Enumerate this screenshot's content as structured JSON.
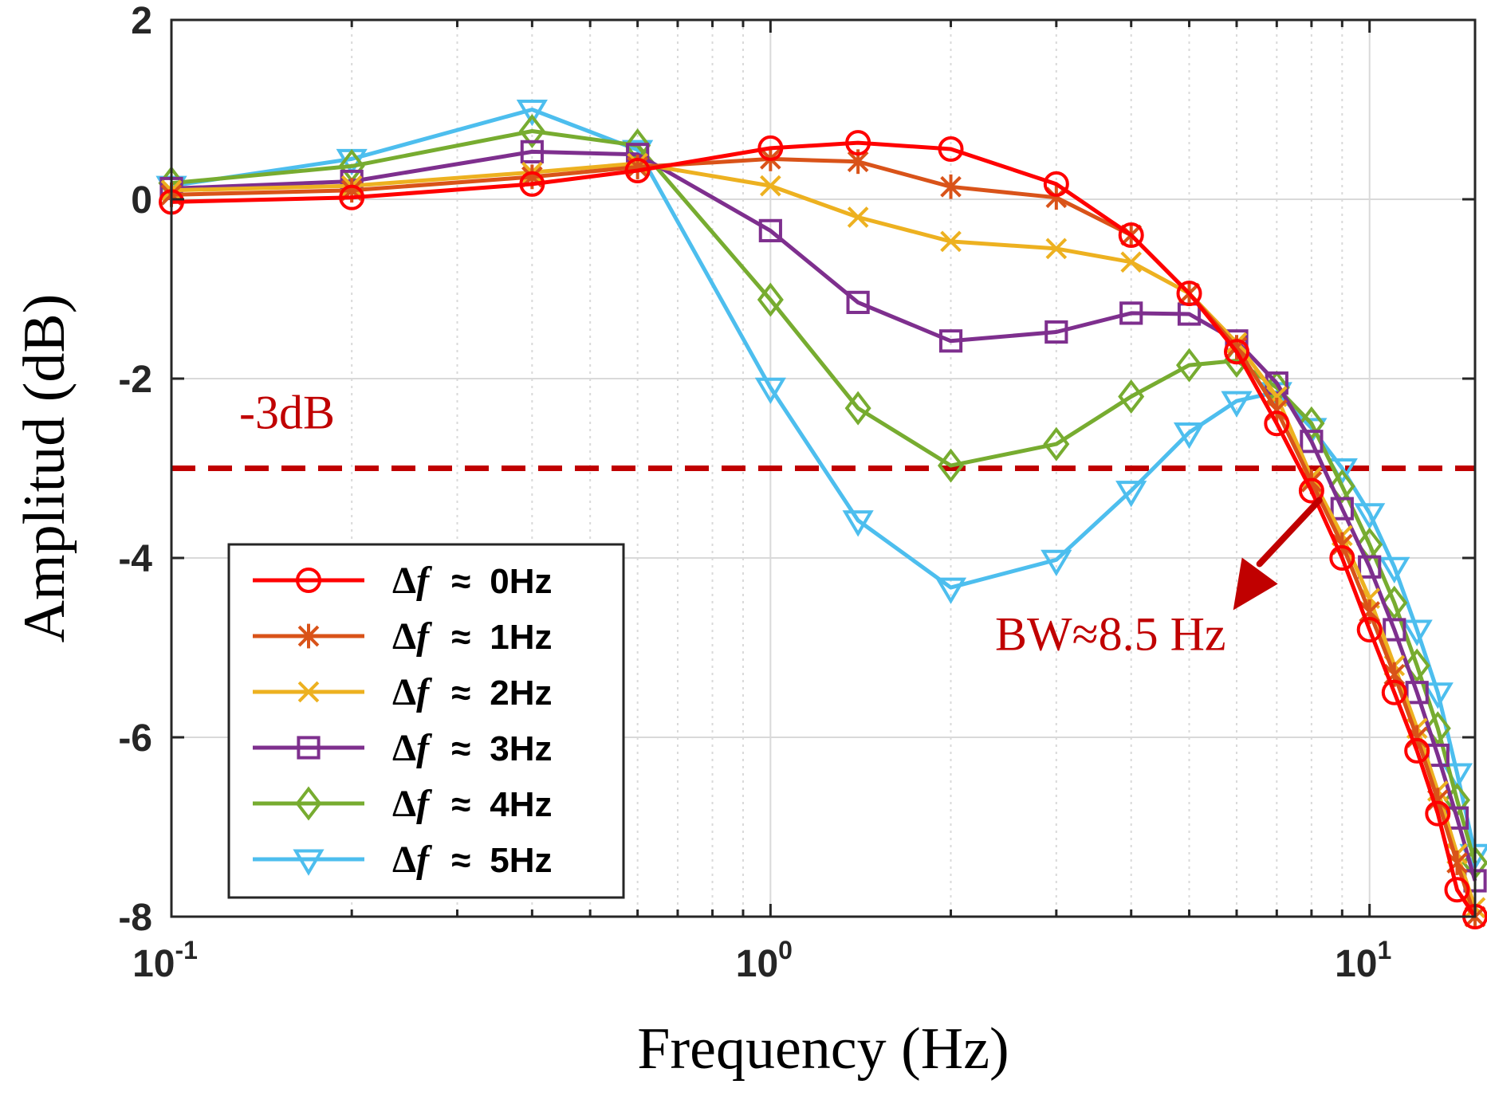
{
  "chart_data": {
    "type": "line",
    "xscale": "log",
    "xlabel": "Frequency (Hz)",
    "ylabel": "Amplitud (dB)",
    "xlim": [
      0.1,
      15
    ],
    "ylim": [
      -8,
      2
    ],
    "grid": true,
    "legend_position": "bottom-left",
    "x_ticks": [
      {
        "value": 0.1,
        "base": "10",
        "exp": "-1"
      },
      {
        "value": 1,
        "base": "10",
        "exp": "0"
      },
      {
        "value": 10,
        "base": "10",
        "exp": "1"
      }
    ],
    "y_ticks": [
      {
        "value": 2,
        "label": "2"
      },
      {
        "value": 0,
        "label": "0"
      },
      {
        "value": -2,
        "label": "-2"
      },
      {
        "value": -4,
        "label": "-4"
      },
      {
        "value": -6,
        "label": "-6"
      },
      {
        "value": -8,
        "label": "-8"
      }
    ],
    "threshold": {
      "value": -3,
      "label": "-3dB",
      "color": "#c00000"
    },
    "bandwidth_annotation": {
      "label": "BW≈8.5 Hz",
      "points_to_x": 8.5,
      "points_to_y": -3,
      "color": "#c00000"
    },
    "legend_prefix": "Δf",
    "legend_approx": "≈",
    "series": [
      {
        "name": "0Hz",
        "color": "#ff0000",
        "marker": "circle",
        "x": [
          0.1,
          0.2,
          0.4,
          0.6,
          1,
          1.4,
          2,
          3,
          4,
          5,
          6,
          7,
          8,
          9,
          10,
          11,
          12,
          13,
          14,
          15
        ],
        "y": [
          -0.03,
          0.02,
          0.17,
          0.32,
          0.57,
          0.63,
          0.56,
          0.17,
          -0.4,
          -1.05,
          -1.7,
          -2.5,
          -3.25,
          -4.0,
          -4.8,
          -5.5,
          -6.15,
          -6.85,
          -7.7,
          -8.0
        ]
      },
      {
        "name": "1Hz",
        "color": "#d95319",
        "marker": "asterisk",
        "x": [
          0.1,
          0.2,
          0.4,
          0.6,
          1,
          1.4,
          2,
          3,
          4,
          5,
          6,
          7,
          8,
          9,
          10,
          11,
          12,
          13,
          14,
          15
        ],
        "y": [
          0.05,
          0.1,
          0.25,
          0.36,
          0.45,
          0.42,
          0.14,
          0.02,
          -0.4,
          -1.05,
          -1.65,
          -2.35,
          -3.15,
          -3.85,
          -4.6,
          -5.3,
          -6.0,
          -6.7,
          -7.4,
          -8.0
        ]
      },
      {
        "name": "2Hz",
        "color": "#edb120",
        "marker": "cross",
        "x": [
          0.1,
          0.2,
          0.4,
          0.6,
          1,
          1.4,
          2,
          3,
          4,
          5,
          6,
          7,
          8,
          9,
          10,
          11,
          12,
          13,
          14,
          15
        ],
        "y": [
          0.1,
          0.15,
          0.3,
          0.4,
          0.15,
          -0.2,
          -0.47,
          -0.55,
          -0.7,
          -1.05,
          -1.6,
          -2.2,
          -3.1,
          -3.75,
          -4.45,
          -5.2,
          -5.9,
          -6.6,
          -7.3,
          -7.9
        ]
      },
      {
        "name": "3Hz",
        "color": "#7e2f8e",
        "marker": "square",
        "x": [
          0.1,
          0.2,
          0.4,
          0.6,
          1,
          1.4,
          2,
          3,
          4,
          5,
          6,
          7,
          8,
          9,
          10,
          11,
          12,
          13,
          14,
          15
        ],
        "y": [
          0.12,
          0.2,
          0.53,
          0.5,
          -0.35,
          -1.15,
          -1.58,
          -1.48,
          -1.27,
          -1.28,
          -1.58,
          -2.05,
          -2.7,
          -3.45,
          -4.1,
          -4.8,
          -5.5,
          -6.2,
          -6.9,
          -7.6
        ]
      },
      {
        "name": "4Hz",
        "color": "#77ac30",
        "marker": "diamond",
        "x": [
          0.1,
          0.2,
          0.4,
          0.6,
          1,
          1.4,
          2,
          3,
          4,
          5,
          6,
          7,
          8,
          9,
          10,
          11,
          12,
          13,
          14,
          15
        ],
        "y": [
          0.18,
          0.37,
          0.76,
          0.6,
          -1.12,
          -2.33,
          -2.97,
          -2.73,
          -2.2,
          -1.85,
          -1.8,
          -2.1,
          -2.5,
          -3.2,
          -3.85,
          -4.5,
          -5.2,
          -5.9,
          -6.7,
          -7.4
        ]
      },
      {
        "name": "5Hz",
        "color": "#4dbeee",
        "marker": "triangle-down",
        "x": [
          0.1,
          0.2,
          0.4,
          0.6,
          1,
          1.4,
          2,
          3,
          4,
          5,
          6,
          7,
          8,
          9,
          10,
          11,
          12,
          13,
          14,
          15
        ],
        "y": [
          0.15,
          0.45,
          1.0,
          0.55,
          -2.1,
          -3.58,
          -4.33,
          -4.02,
          -3.25,
          -2.6,
          -2.25,
          -2.15,
          -2.55,
          -3.0,
          -3.5,
          -4.1,
          -4.8,
          -5.5,
          -6.4,
          -7.3
        ]
      }
    ]
  }
}
